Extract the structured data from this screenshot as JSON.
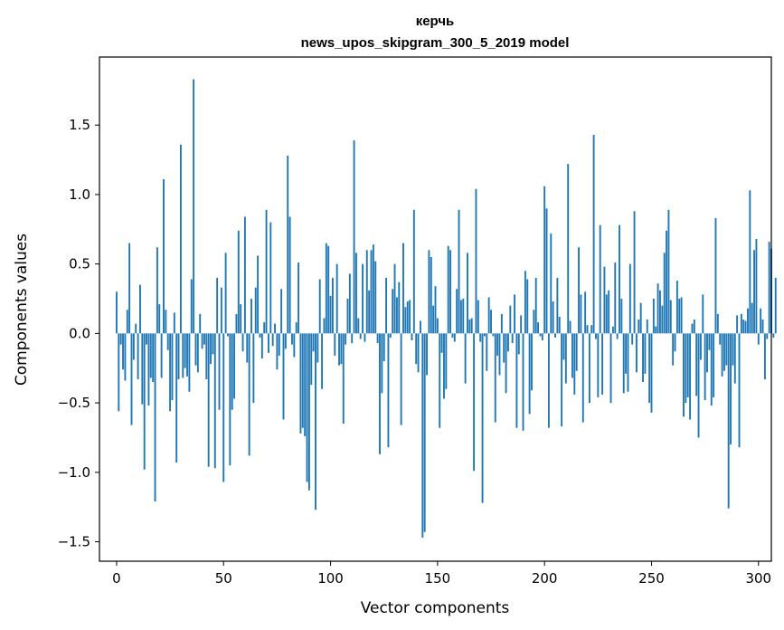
{
  "chart_data": {
    "type": "bar",
    "title": "керчь",
    "subtitle": "news_upos_skipgram_300_5_2019 model",
    "xlabel": "Vector components",
    "ylabel": "Components values",
    "xlim": [
      -8,
      306
    ],
    "ylim": [
      -1.64,
      1.99
    ],
    "xticks": [
      0,
      50,
      100,
      150,
      200,
      250,
      300
    ],
    "yticks": [
      -1.5,
      -1.0,
      -0.5,
      0.0,
      0.5,
      1.0,
      1.5
    ],
    "ytick_labels": [
      "−1.5",
      "−1.0",
      "−0.5",
      "0.0",
      "0.5",
      "1.0",
      "1.5"
    ],
    "xtick_labels": [
      "0",
      "50",
      "100",
      "150",
      "200",
      "250",
      "300"
    ],
    "bar_color": "#1f77b4",
    "values": [
      0.3,
      -0.56,
      -0.08,
      -0.26,
      -0.34,
      0.17,
      0.65,
      -0.66,
      -0.19,
      0.07,
      -0.33,
      0.35,
      -0.51,
      -0.98,
      -0.08,
      -0.52,
      -0.32,
      -0.35,
      -1.21,
      0.62,
      0.21,
      -0.32,
      1.11,
      0.17,
      -0.12,
      -0.56,
      -0.48,
      0.15,
      -0.93,
      -0.33,
      1.36,
      -0.32,
      -0.25,
      -0.31,
      -0.42,
      0.39,
      1.83,
      -0.23,
      -0.28,
      0.14,
      -0.11,
      -0.08,
      -0.33,
      -0.96,
      -0.22,
      -0.15,
      -0.97,
      0.4,
      -0.55,
      0.33,
      -1.07,
      0.58,
      -0.02,
      -0.95,
      -0.55,
      -0.47,
      0.14,
      0.74,
      0.21,
      -0.13,
      0.84,
      -0.21,
      -0.88,
      0.25,
      -0.5,
      0.33,
      0.56,
      -0.03,
      -0.18,
      0.08,
      0.89,
      -0.14,
      0.8,
      -0.09,
      0.07,
      -0.26,
      -0.16,
      0.32,
      -0.62,
      -0.11,
      1.28,
      0.84,
      -0.08,
      -0.17,
      0.08,
      0.51,
      -0.72,
      -0.68,
      -0.74,
      -1.07,
      -1.13,
      -0.37,
      -0.13,
      -1.27,
      -0.21,
      0.39,
      -0.4,
      0.11,
      0.65,
      0.63,
      0.27,
      0.4,
      -0.16,
      0.5,
      -0.23,
      -0.22,
      -0.65,
      -0.08,
      0.25,
      0.43,
      -0.07,
      1.39,
      0.58,
      0.11,
      -0.04,
      0.5,
      -0.06,
      0.6,
      0.31,
      0.6,
      0.64,
      0.52,
      -0.07,
      -0.87,
      -0.43,
      -0.2,
      0.4,
      -0.82,
      -0.03,
      0.32,
      0.5,
      0.26,
      0.37,
      -0.66,
      0.65,
      0.19,
      0.23,
      0.24,
      -0.05,
      0.89,
      -0.22,
      -0.28,
      0.09,
      -1.47,
      -1.43,
      -0.3,
      0.6,
      0.55,
      0.2,
      0.34,
      0.11,
      -0.68,
      -0.14,
      -0.47,
      -0.4,
      0.63,
      0.6,
      -0.03,
      -0.06,
      0.32,
      0.89,
      0.24,
      0.25,
      -0.36,
      0.58,
      0.1,
      0.11,
      -0.99,
      1.04,
      0.24,
      -0.06,
      -1.22,
      -0.02,
      -0.27,
      0.26,
      0.17,
      -0.02,
      -0.64,
      -0.16,
      -0.3,
      0.14,
      -0.21,
      -0.43,
      -0.13,
      0.2,
      -0.07,
      0.28,
      -0.68,
      -0.15,
      0.13,
      -0.7,
      0.45,
      0.39,
      -0.58,
      -0.41,
      0.17,
      0.4,
      0.08,
      -0.02,
      -0.05,
      1.06,
      0.9,
      -0.68,
      0.72,
      0.23,
      -0.03,
      0.4,
      0.12,
      -0.67,
      -0.19,
      -0.36,
      1.22,
      0.09,
      -0.32,
      -0.44,
      -0.27,
      0.62,
      0.28,
      -0.64,
      0.3,
      0.06,
      -0.5,
      0.06,
      1.43,
      -0.04,
      -0.46,
      0.78,
      -0.44,
      0.48,
      0.28,
      0.31,
      -0.5,
      0.05,
      0.51,
      -0.04,
      0.78,
      0.25,
      -0.43,
      -0.29,
      -0.42,
      0.5,
      -0.08,
      0.88,
      -0.28,
      0.1,
      0.22,
      -0.35,
      -0.29,
      0.1,
      -0.5,
      -0.57,
      0.25,
      0.05,
      0.36,
      0.31,
      0.2,
      0.58,
      0.74,
      0.89,
      0.24,
      -0.23,
      -0.13,
      0.38,
      0.25,
      0.26,
      -0.6,
      -0.5,
      -0.46,
      -0.62,
      0.07,
      0.1,
      -0.45,
      -0.75,
      -0.19,
      0.28,
      -0.48,
      -0.28,
      -0.12,
      -0.52,
      -0.46,
      0.83,
      0.14,
      -0.08,
      -0.31,
      -0.27,
      -0.23,
      -1.26,
      -0.8,
      -0.23,
      -0.36,
      0.13,
      -0.82,
      0.14,
      0.1,
      0.09,
      0.18,
      1.03,
      0.22,
      0.6,
      0.68,
      -0.08,
      0.18,
      0.1,
      -0.33,
      -0.04,
      0.66,
      0.61,
      -0.03,
      0.4
    ]
  }
}
